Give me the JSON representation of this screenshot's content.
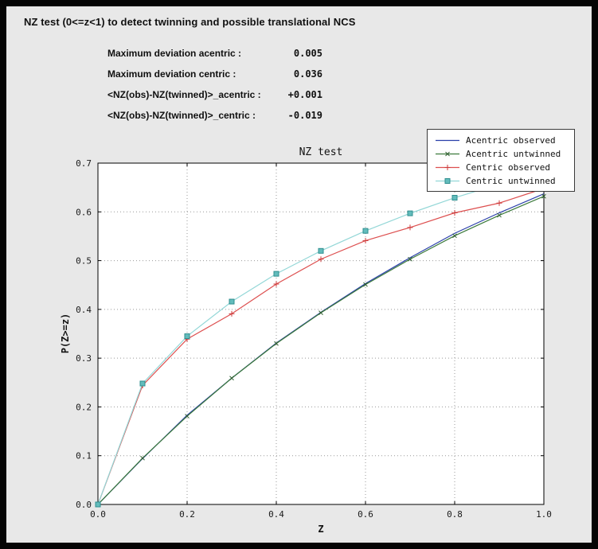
{
  "window": {
    "bg": "#e8e8e8",
    "frame": "#000000"
  },
  "header": {
    "title": "NZ test (0<=z<1) to detect twinning and possible translational NCS"
  },
  "stats": [
    {
      "label": "Maximum deviation acentric :",
      "value": "0.005"
    },
    {
      "label": "Maximum deviation centric :",
      "value": "0.036"
    },
    {
      "label": "<NZ(obs)-NZ(twinned)>_acentric :",
      "value": "+0.001"
    },
    {
      "label": "<NZ(obs)-NZ(twinned)>_centric :",
      "value": "-0.019"
    }
  ],
  "chart_data": {
    "type": "line",
    "title": "NZ test",
    "xlabel": "Z",
    "ylabel": "P(Z>=z)",
    "xlim": [
      0.0,
      1.0
    ],
    "ylim": [
      0.0,
      0.7
    ],
    "x_ticks": [
      "0.0",
      "0.2",
      "0.4",
      "0.6",
      "0.8",
      "1.0"
    ],
    "y_ticks": [
      "0.0",
      "0.1",
      "0.2",
      "0.3",
      "0.4",
      "0.5",
      "0.6",
      "0.7"
    ],
    "grid": "dotted",
    "grid_color": "#999999",
    "legend_position": "upper right",
    "x": [
      0.0,
      0.1,
      0.2,
      0.3,
      0.4,
      0.5,
      0.6,
      0.7,
      0.8,
      0.9,
      1.0
    ],
    "series": [
      {
        "name": "Acentric observed",
        "color": "#2a3faa",
        "marker": "none",
        "values": [
          0.0,
          0.094,
          0.183,
          0.259,
          0.331,
          0.394,
          0.453,
          0.506,
          0.556,
          0.598,
          0.637
        ]
      },
      {
        "name": "Acentric untwinned",
        "color": "#3c7a3c",
        "marker": "x",
        "marker_color": "#2f5f2f",
        "values": [
          0.0,
          0.095,
          0.181,
          0.259,
          0.33,
          0.393,
          0.451,
          0.503,
          0.551,
          0.593,
          0.632
        ]
      },
      {
        "name": "Centric observed",
        "color": "#dd4f4f",
        "marker": "plus",
        "marker_color": "#cc3a3a",
        "values": [
          0.0,
          0.244,
          0.339,
          0.391,
          0.452,
          0.503,
          0.541,
          0.568,
          0.598,
          0.618,
          0.648
        ]
      },
      {
        "name": "Centric untwinned",
        "color": "#93d7d7",
        "marker": "square",
        "marker_fill": "#63bcbc",
        "marker_edge": "#2f8f8f",
        "values": [
          0.0,
          0.248,
          0.345,
          0.416,
          0.473,
          0.52,
          0.561,
          0.597,
          0.629,
          0.657,
          0.683
        ]
      }
    ]
  }
}
